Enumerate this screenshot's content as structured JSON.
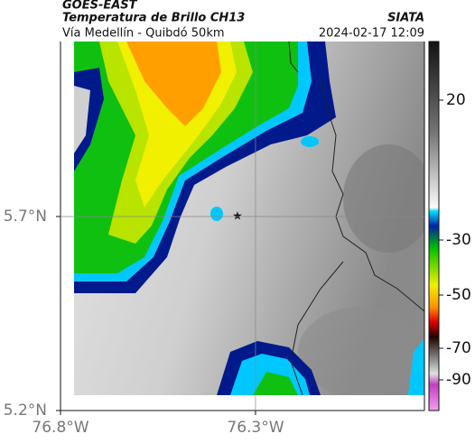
{
  "header": {
    "product": "GOES-EAST",
    "title": "Temperatura de Brillo CH13",
    "source": "SIATA",
    "subtitle": "Vía Medellín - Quibdó 50km",
    "timestamp": "2024-02-17 12:09"
  },
  "map": {
    "xlim": [
      -76.8,
      -75.867
    ],
    "ylim": [
      5.2,
      6.151
    ],
    "xticks": [
      {
        "value": -76.8,
        "label": "76.8°W"
      },
      {
        "value": -76.3,
        "label": "76.3°W"
      }
    ],
    "yticks": [
      {
        "value": 5.7,
        "label": "5.7°N"
      },
      {
        "value": 5.2,
        "label": "5.2°N"
      }
    ],
    "grid": true
  },
  "colorbar": {
    "ticks": [
      20,
      -30,
      -50,
      -70,
      -90
    ]
  }
}
